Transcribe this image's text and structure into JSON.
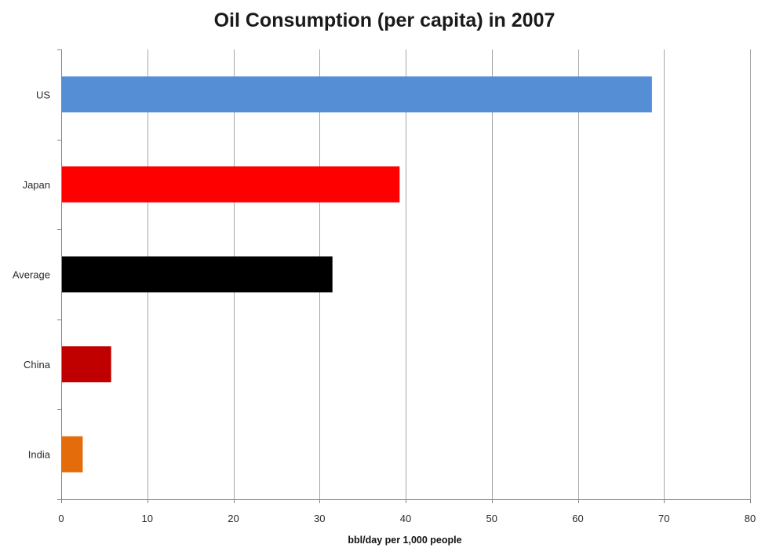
{
  "chart_data": {
    "type": "bar",
    "orientation": "horizontal",
    "title": "Oil Consumption (per capita) in 2007",
    "xlabel": "bbl/day per 1,000 people",
    "ylabel": "",
    "xlim": [
      0,
      80
    ],
    "x_ticks": [
      0,
      10,
      20,
      30,
      40,
      50,
      60,
      70,
      80
    ],
    "categories": [
      "US",
      "Japan",
      "Average",
      "China",
      "India"
    ],
    "values": [
      68.6,
      39.3,
      31.5,
      5.8,
      2.5
    ],
    "colors": [
      "#558ed5",
      "#ff0000",
      "#000000",
      "#c00000",
      "#e46c0a"
    ],
    "grid": "vertical",
    "legend": "none"
  }
}
